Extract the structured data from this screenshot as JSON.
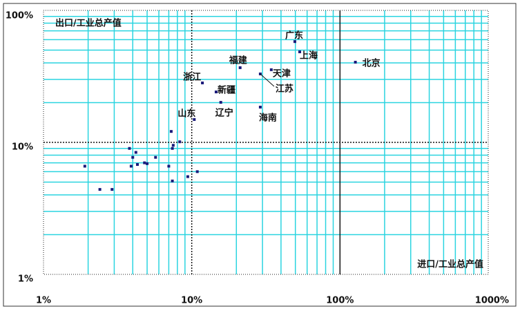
{
  "chart_data": {
    "type": "scatter",
    "x_label": "进口/工业总产值",
    "y_label": "出口/工业总产值",
    "x": [
      49.6,
      53.5,
      127,
      21.2,
      34.4,
      29,
      11.8,
      14.6,
      15.7,
      29,
      10.4,
      7.27,
      7.5,
      8.3,
      7.4,
      3.8,
      4.2,
      4.0,
      3.9,
      4.3,
      4.8,
      5.0,
      5.7,
      7.0,
      1.9,
      7.4,
      9.4,
      10.9,
      2.4,
      2.9
    ],
    "values": [
      58,
      48.5,
      40.5,
      36.8,
      35.5,
      33,
      28.2,
      24.1,
      20.1,
      18.5,
      14.9,
      12.1,
      9.5,
      10.1,
      9.0,
      9.0,
      8.4,
      7.7,
      6.6,
      6.8,
      7.0,
      6.9,
      7.7,
      6.6,
      6.6,
      5.1,
      5.5,
      6.0,
      4.4,
      4.4
    ],
    "point_labels": [
      "广东",
      "上海",
      "北京",
      "福建",
      "天津",
      "江苏",
      "浙江",
      "新疆",
      "辽宁",
      "海南",
      "山东",
      null,
      null,
      null,
      null,
      null,
      null,
      null,
      null,
      null,
      null,
      null,
      null,
      null,
      null,
      null,
      null,
      null,
      null,
      null
    ],
    "color": "#1a1a7a",
    "log_x": true,
    "log_y": true,
    "xlim": [
      1,
      1000
    ],
    "ylim": [
      1,
      100
    ],
    "xticks": [
      {
        "value": 1,
        "label": "1%"
      },
      {
        "value": 10,
        "label": "10%"
      },
      {
        "value": 100,
        "label": "100%"
      },
      {
        "value": 1000,
        "label": "1000%"
      }
    ],
    "yticks": [
      {
        "value": 1,
        "label": "1%"
      },
      {
        "value": 10,
        "label": "10%"
      },
      {
        "value": 100,
        "label": "100%"
      }
    ],
    "grid": true
  }
}
